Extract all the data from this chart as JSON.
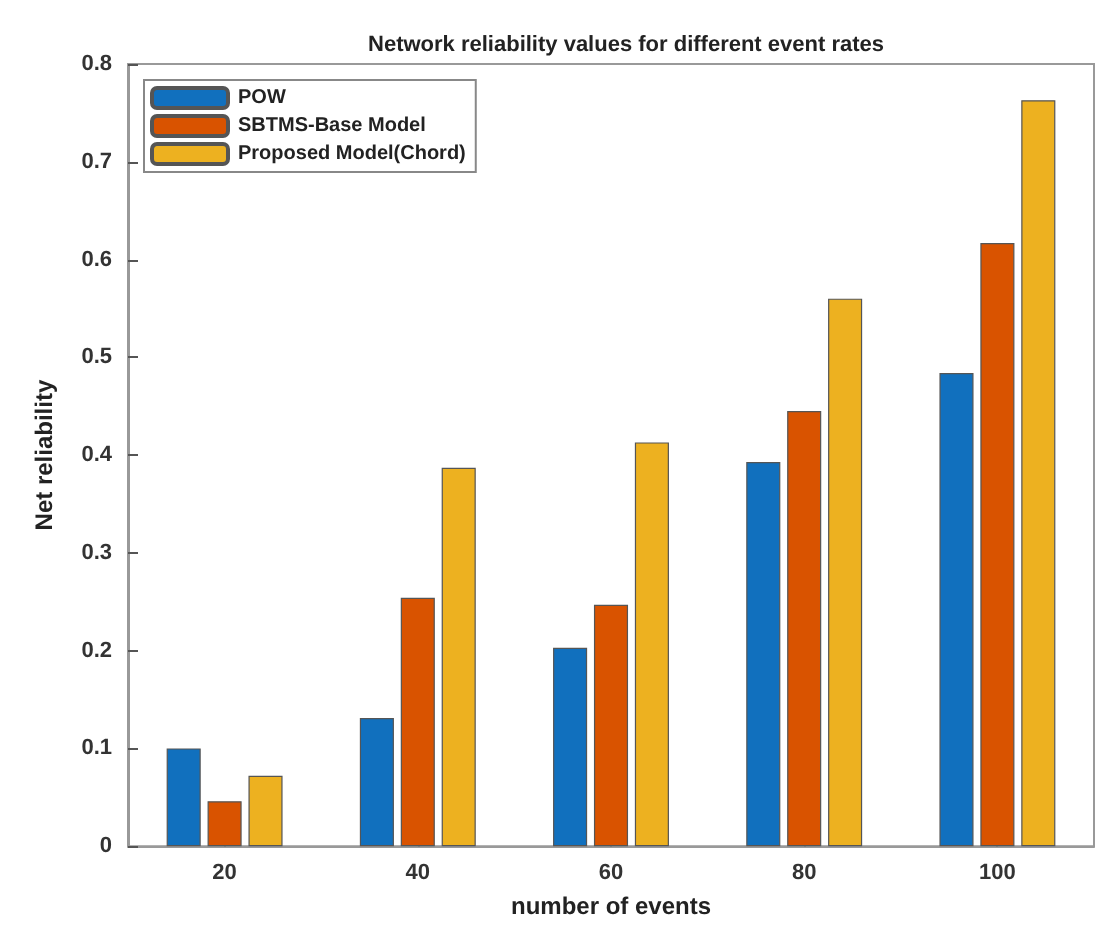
{
  "chart_data": {
    "type": "bar",
    "title": "Network reliability values for different event rates",
    "xlabel": "number of events",
    "ylabel": "Net reliability",
    "categories": [
      "20",
      "40",
      "60",
      "80",
      "100"
    ],
    "series": [
      {
        "name": "POW",
        "color": "#1170be",
        "values": [
          0.1,
          0.131,
          0.203,
          0.393,
          0.484
        ]
      },
      {
        "name": "SBTMS-Base Model",
        "color": "#d95300",
        "values": [
          0.046,
          0.254,
          0.247,
          0.445,
          0.617
        ]
      },
      {
        "name": "Proposed Model(Chord)",
        "color": "#edb120",
        "values": [
          0.072,
          0.387,
          0.413,
          0.56,
          0.763
        ]
      }
    ],
    "ylim": [
      0,
      0.8
    ],
    "yticks": [
      0,
      0.1,
      0.2,
      0.3,
      0.4,
      0.5,
      0.6,
      0.7,
      0.8
    ],
    "grid": false,
    "legend": "top left"
  }
}
